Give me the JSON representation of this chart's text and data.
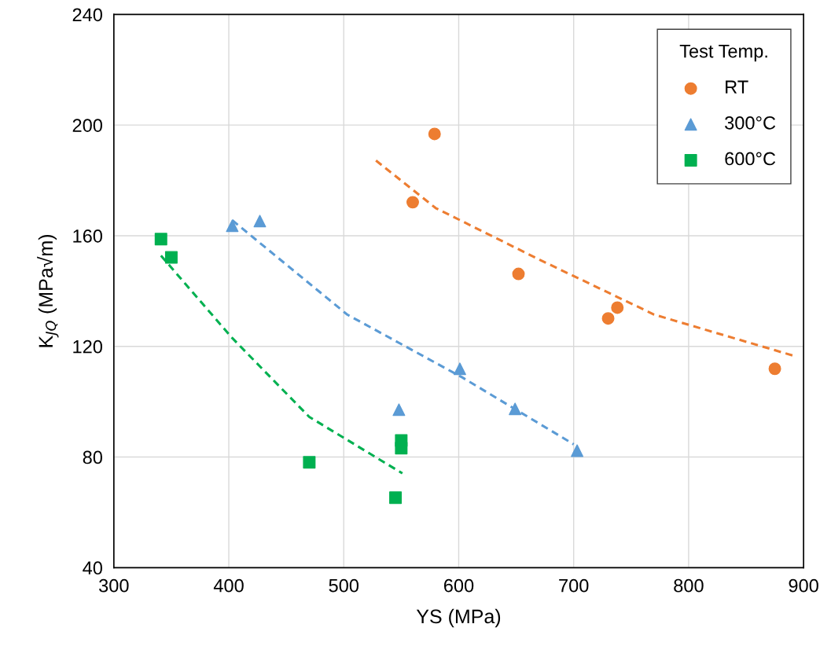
{
  "chart_data": {
    "type": "scatter",
    "xlabel": "YS (MPa)",
    "ylabel": "K$_{JQ}$ (MPa√m)",
    "legend_title": "Test Temp.",
    "legend": "top right",
    "grid": true,
    "xlim": [
      300,
      900
    ],
    "xticks": [
      300,
      400,
      500,
      600,
      700,
      800,
      900
    ],
    "ylim": [
      40,
      240
    ],
    "yticks": [
      40,
      80,
      120,
      160,
      200,
      240
    ],
    "series": [
      {
        "name": "RT",
        "color": "#ed7d31",
        "marker": "circle",
        "x": [
          560,
          579,
          652,
          730,
          738,
          875
        ],
        "values": [
          172.1,
          196.8,
          146.2,
          130.1,
          134,
          111.9
        ]
      },
      {
        "name": "300°C",
        "color": "#5b9bd5",
        "marker": "triangle",
        "x": [
          403,
          427,
          548,
          601,
          649,
          703
        ],
        "values": [
          163.6,
          165.3,
          97.1,
          111.9,
          97.4,
          82.3
        ]
      },
      {
        "name": "600°C",
        "color": "#00b050",
        "marker": "square",
        "x": [
          341,
          350,
          470,
          545,
          550,
          550
        ],
        "values": [
          158.8,
          152.2,
          78.1,
          65.3,
          86,
          83.2
        ]
      },
      {
        "type": "line",
        "color": "#ed7d31",
        "line_style": "dashed",
        "marker": "none",
        "x": [
          528,
          580,
          670,
          770,
          893
        ],
        "values": [
          187.2,
          170,
          151.4,
          131.5,
          116.4
        ]
      },
      {
        "type": "line",
        "color": "#5b9bd5",
        "line_style": "dashed",
        "marker": "none",
        "x": [
          403,
          503,
          603,
          700
        ],
        "values": [
          165.6,
          131.5,
          108.8,
          84.6
        ]
      },
      {
        "type": "line",
        "color": "#00b050",
        "line_style": "dashed",
        "marker": "none",
        "x": [
          341,
          403,
          470,
          551
        ],
        "values": [
          152.8,
          123,
          94.5,
          74.1
        ]
      }
    ]
  }
}
